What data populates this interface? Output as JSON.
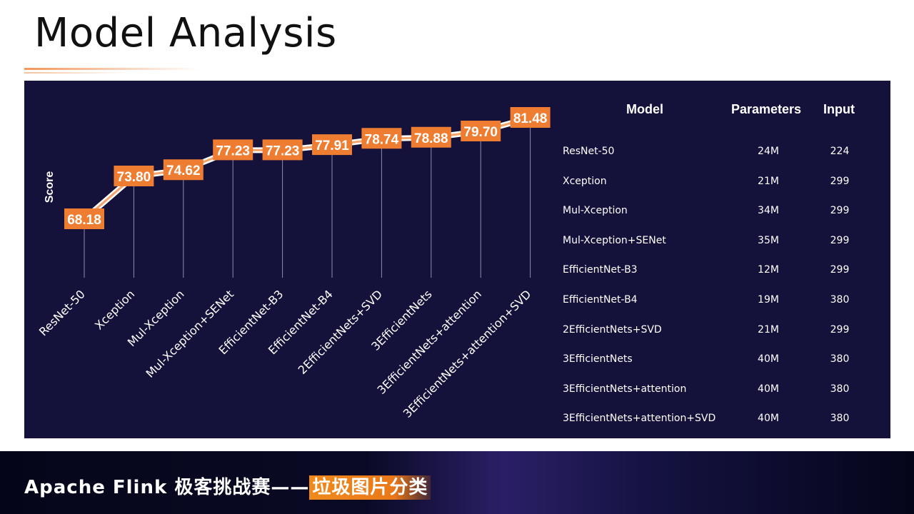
{
  "page": {
    "title": "Model Analysis",
    "footer_prefix": "Apache Flink 极客挑战赛——",
    "footer_highlight": "垃圾图片分类"
  },
  "colors": {
    "panel_bg": "#14113a",
    "accent": "#ee7d31",
    "line": "#ffffff"
  },
  "chart_data": {
    "type": "line",
    "title": "",
    "xlabel": "",
    "ylabel": "Score",
    "categories": [
      "ResNet-50",
      "Xception",
      "Mul-Xception",
      "Mul-Xception+SENet",
      "EfficientNet-B3",
      "EfficientNet-B4",
      "2EfficientNets+SVD",
      "3EfficientNets",
      "3EfficientNets+attention",
      "3EfficientNets+attention+SVD"
    ],
    "series": [
      {
        "values": [
          68.18,
          73.8,
          74.62,
          77.23,
          77.23,
          77.91,
          78.74,
          78.88,
          79.7,
          81.48
        ]
      }
    ],
    "data_labels": [
      "68.18",
      "73.80",
      "74.62",
      "77.23",
      "77.23",
      "77.91",
      "78.74",
      "78.88",
      "79.70",
      "81.48"
    ],
    "grid": false
  },
  "table": {
    "headers": {
      "model": "Model",
      "params": "Parameters",
      "input": "Input"
    },
    "rows": [
      {
        "model": "ResNet-50",
        "params": "24M",
        "input": "224"
      },
      {
        "model": "Xception",
        "params": "21M",
        "input": "299"
      },
      {
        "model": "Mul-Xception",
        "params": "34M",
        "input": "299"
      },
      {
        "model": "Mul-Xception+SENet",
        "params": "35M",
        "input": "299"
      },
      {
        "model": "EfficientNet-B3",
        "params": "12M",
        "input": "299"
      },
      {
        "model": "EfficientNet-B4",
        "params": "19M",
        "input": "380"
      },
      {
        "model": "2EfficientNets+SVD",
        "params": "21M",
        "input": "299"
      },
      {
        "model": "3EfficientNets",
        "params": "40M",
        "input": "380"
      },
      {
        "model": "3EfficientNets+attention",
        "params": "40M",
        "input": "380"
      },
      {
        "model": "3EfficientNets+attention+SVD",
        "params": "40M",
        "input": "380"
      }
    ]
  }
}
